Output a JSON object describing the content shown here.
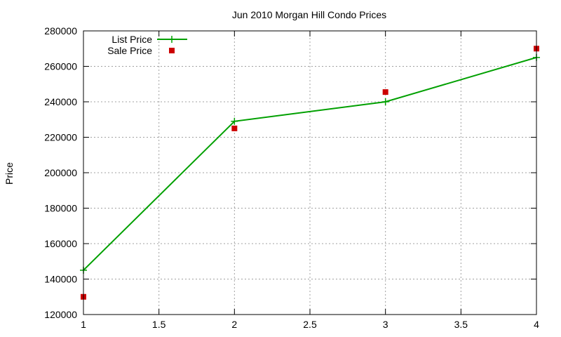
{
  "chart_data": {
    "type": "line",
    "title": "Jun 2010 Morgan Hill Condo Prices",
    "xlabel": "",
    "ylabel": "Price",
    "xlim": [
      1,
      4
    ],
    "ylim": [
      120000,
      280000
    ],
    "x_ticks": [
      1,
      1.5,
      2,
      2.5,
      3,
      3.5,
      4
    ],
    "x_tick_labels": [
      "1",
      "1.5",
      "2",
      "2.5",
      "3",
      "3.5",
      "4"
    ],
    "y_ticks": [
      120000,
      140000,
      160000,
      180000,
      200000,
      220000,
      240000,
      260000,
      280000
    ],
    "y_tick_labels": [
      "120000",
      "140000",
      "160000",
      "180000",
      "200000",
      "220000",
      "240000",
      "260000",
      "280000"
    ],
    "grid": true,
    "legend_position": "top-left",
    "series": [
      {
        "name": "List Price",
        "style": "line-with-plus-markers",
        "color": "#00a000",
        "x": [
          1,
          2,
          3,
          4
        ],
        "y": [
          145000,
          229000,
          240000,
          265000
        ]
      },
      {
        "name": "Sale Price",
        "style": "square-markers",
        "color": "#cc0000",
        "x": [
          1,
          2,
          3,
          4
        ],
        "y": [
          130000,
          225000,
          245500,
          270000
        ]
      }
    ]
  }
}
